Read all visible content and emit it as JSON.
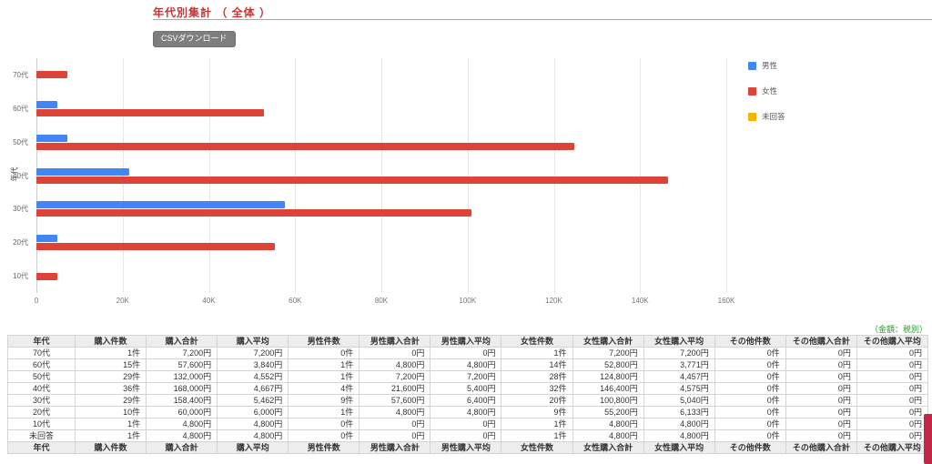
{
  "page": {
    "title": "年代別集計 （ 全体 ）",
    "csv_button_label": "CSVダウンロード",
    "tax_note": "（金額：税別）"
  },
  "colors": {
    "title_red": "#c53434",
    "male_blue": "#4285f4",
    "female_red": "#db4437",
    "noanswer_yellow": "#f4b400",
    "note_green": "#2e9b2e",
    "ribbon_red": "#c22846"
  },
  "chart_data": {
    "type": "bar",
    "orientation": "horizontal",
    "title": "",
    "xlabel": "",
    "ylabel": "年代",
    "xlim": [
      0,
      160000
    ],
    "grid": true,
    "legend_position": "right",
    "categories": [
      "70代",
      "60代",
      "50代",
      "40代",
      "30代",
      "20代",
      "10代"
    ],
    "x_ticks": [
      "0",
      "20K",
      "40K",
      "60K",
      "80K",
      "100K",
      "120K",
      "140K",
      "160K"
    ],
    "series": [
      {
        "name": "男性",
        "color": "#4285f4",
        "values": [
          0,
          4800,
          7200,
          21600,
          57600,
          4800,
          0
        ]
      },
      {
        "name": "女性",
        "color": "#db4437",
        "values": [
          7200,
          52800,
          124800,
          146400,
          100800,
          55200,
          4800
        ]
      },
      {
        "name": "未回答",
        "color": "#f4b400",
        "values": [
          0,
          0,
          0,
          0,
          0,
          0,
          0
        ]
      }
    ]
  },
  "table": {
    "headers": [
      "年代",
      "購入件数",
      "購入合計",
      "購入平均",
      "男性件数",
      "男性購入合計",
      "男性購入平均",
      "女性件数",
      "女性購入合計",
      "女性購入平均",
      "その他件数",
      "その他購入合計",
      "その他購入平均"
    ],
    "rows": [
      [
        "70代",
        "1件",
        "7,200円",
        "7,200円",
        "0件",
        "0円",
        "0円",
        "1件",
        "7,200円",
        "7,200円",
        "0件",
        "0円",
        "0円"
      ],
      [
        "60代",
        "15件",
        "57,600円",
        "3,840円",
        "1件",
        "4,800円",
        "4,800円",
        "14件",
        "52,800円",
        "3,771円",
        "0件",
        "0円",
        "0円"
      ],
      [
        "50代",
        "29件",
        "132,000円",
        "4,552円",
        "1件",
        "7,200円",
        "7,200円",
        "28件",
        "124,800円",
        "4,457円",
        "0件",
        "0円",
        "0円"
      ],
      [
        "40代",
        "36件",
        "168,000円",
        "4,667円",
        "4件",
        "21,600円",
        "5,400円",
        "32件",
        "146,400円",
        "4,575円",
        "0件",
        "0円",
        "0円"
      ],
      [
        "30代",
        "29件",
        "158,400円",
        "5,462円",
        "9件",
        "57,600円",
        "6,400円",
        "20件",
        "100,800円",
        "5,040円",
        "0件",
        "0円",
        "0円"
      ],
      [
        "20代",
        "10件",
        "60,000円",
        "6,000円",
        "1件",
        "4,800円",
        "4,800円",
        "9件",
        "55,200円",
        "6,133円",
        "0件",
        "0円",
        "0円"
      ],
      [
        "10代",
        "1件",
        "4,800円",
        "4,800円",
        "0件",
        "0円",
        "0円",
        "1件",
        "4,800円",
        "4,800円",
        "0件",
        "0円",
        "0円"
      ],
      [
        "未回答",
        "1件",
        "4,800円",
        "4,800円",
        "0件",
        "0円",
        "0円",
        "1件",
        "4,800円",
        "4,800円",
        "0件",
        "0円",
        "0円"
      ]
    ],
    "footer_repeats_header": true
  }
}
